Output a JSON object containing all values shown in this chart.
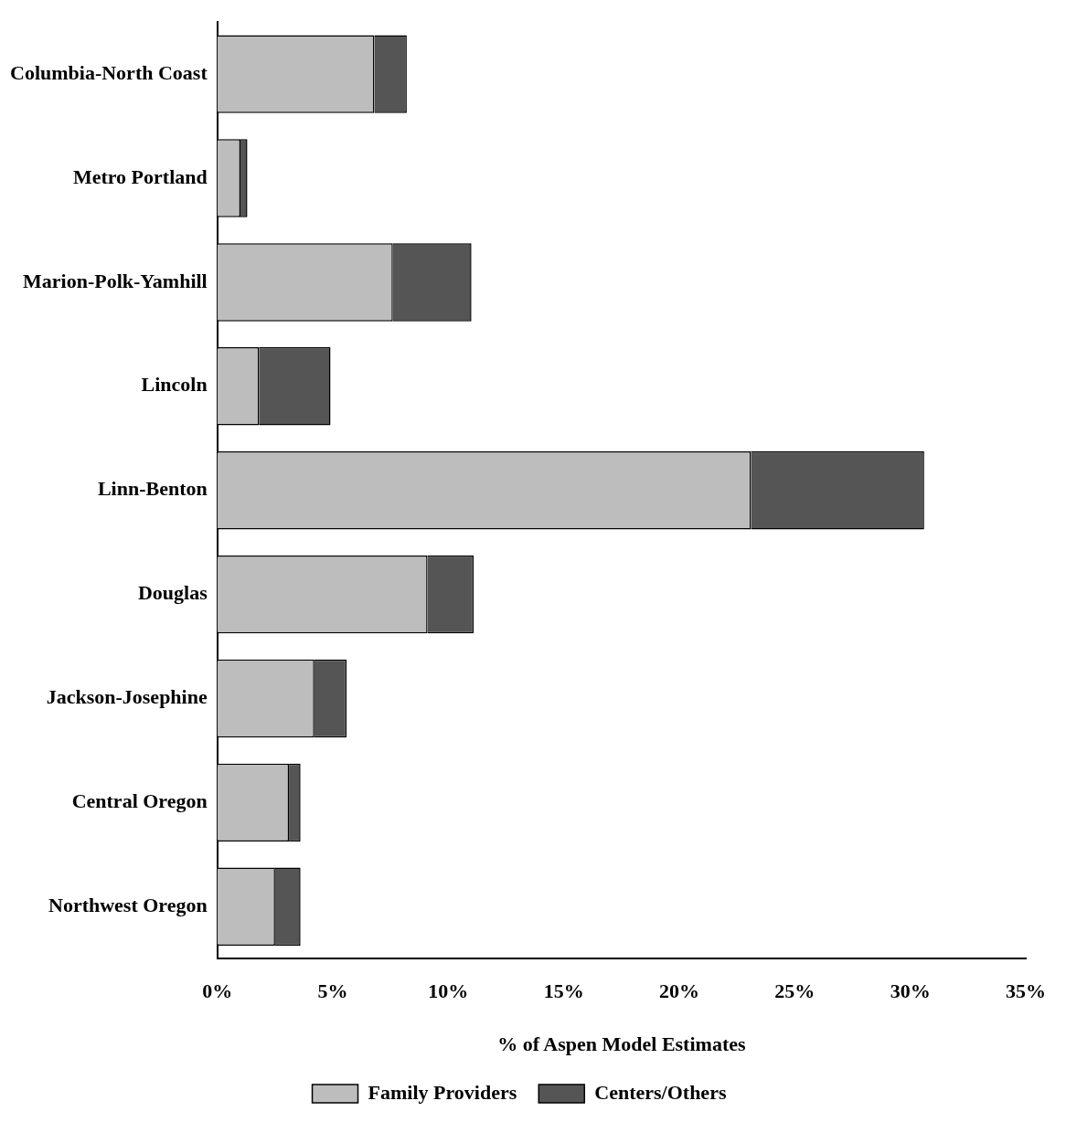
{
  "chart_data": {
    "type": "bar",
    "orientation": "horizontal",
    "stacked": true,
    "xlabel": "% of Aspen Model Estimates",
    "categories": [
      "Columbia-North Coast",
      "Metro Portland",
      "Marion-Polk-Yamhill",
      "Lincoln",
      "Linn-Benton",
      "Douglas",
      "Jackson-Josephine",
      "Central Oregon",
      "Northwest Oregon"
    ],
    "series": [
      {
        "name": "Family Providers",
        "color": "#bdbdbd",
        "values": [
          6.8,
          1.0,
          7.6,
          1.8,
          23.1,
          9.1,
          4.2,
          3.1,
          2.5
        ]
      },
      {
        "name": "Centers/Others",
        "color": "#555555",
        "values": [
          1.4,
          0.3,
          3.4,
          3.1,
          7.5,
          2.0,
          1.4,
          0.5,
          1.1
        ]
      }
    ],
    "xlim": [
      0,
      35
    ],
    "xticks": [
      {
        "value": 0,
        "label": "0%"
      },
      {
        "value": 5,
        "label": "5%"
      },
      {
        "value": 10,
        "label": "10%"
      },
      {
        "value": 15,
        "label": "15%"
      },
      {
        "value": 20,
        "label": "20%"
      },
      {
        "value": 25,
        "label": "25%"
      },
      {
        "value": 30,
        "label": "30%"
      },
      {
        "value": 35,
        "label": "35%"
      }
    ],
    "grid": false,
    "legend": "bottom"
  }
}
